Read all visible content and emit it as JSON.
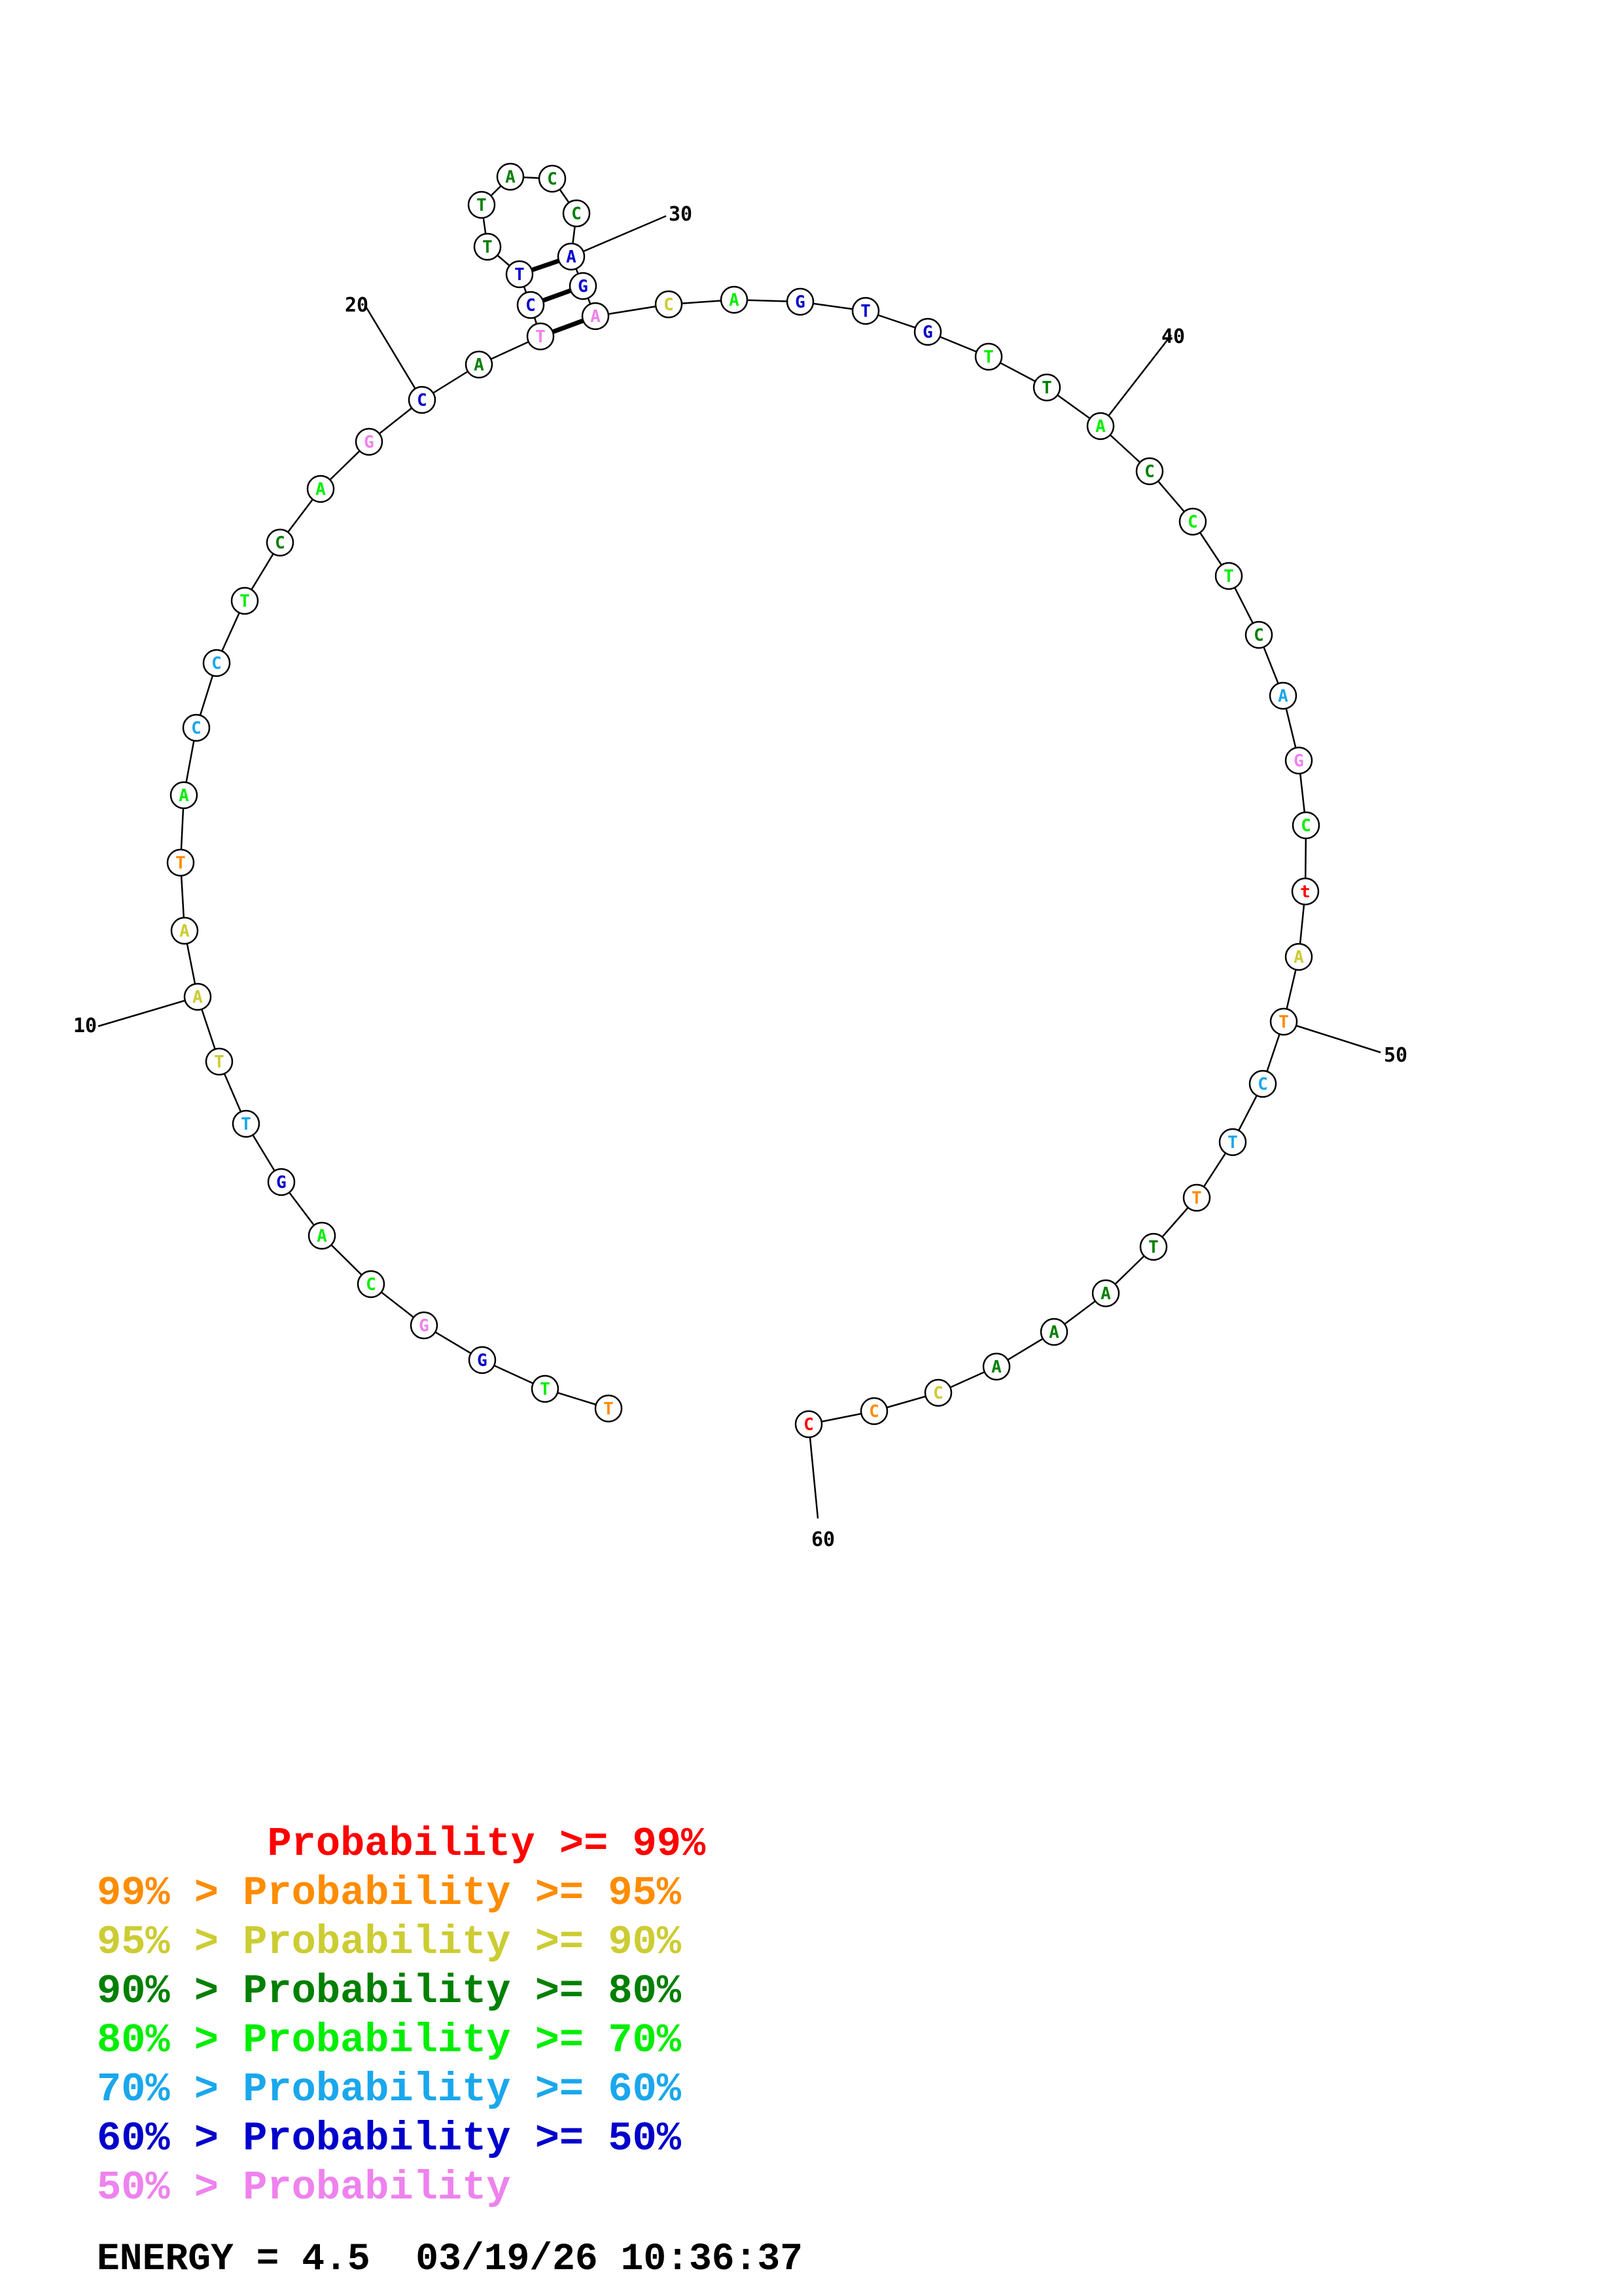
{
  "colors": {
    "p99": "#ff0000",
    "p95": "#ff8c00",
    "p90": "#cccc33",
    "p80": "#008000",
    "p70": "#00ee00",
    "p60": "#1aa7ec",
    "p50": "#0000cc",
    "plt50": "#ee82ee"
  },
  "structure": {
    "nucleotides": [
      {
        "i": 1,
        "base": "T",
        "prob": "p95"
      },
      {
        "i": 2,
        "base": "T",
        "prob": "p70"
      },
      {
        "i": 3,
        "base": "G",
        "prob": "p50"
      },
      {
        "i": 4,
        "base": "G",
        "prob": "plt50"
      },
      {
        "i": 5,
        "base": "C",
        "prob": "p70"
      },
      {
        "i": 6,
        "base": "A",
        "prob": "p70"
      },
      {
        "i": 7,
        "base": "G",
        "prob": "p50"
      },
      {
        "i": 8,
        "base": "T",
        "prob": "p60"
      },
      {
        "i": 9,
        "base": "T",
        "prob": "p90"
      },
      {
        "i": 10,
        "base": "A",
        "prob": "p90"
      },
      {
        "i": 11,
        "base": "A",
        "prob": "p90"
      },
      {
        "i": 12,
        "base": "T",
        "prob": "p95"
      },
      {
        "i": 13,
        "base": "A",
        "prob": "p70"
      },
      {
        "i": 14,
        "base": "C",
        "prob": "p60"
      },
      {
        "i": 15,
        "base": "C",
        "prob": "p60"
      },
      {
        "i": 16,
        "base": "T",
        "prob": "p70"
      },
      {
        "i": 17,
        "base": "C",
        "prob": "p80"
      },
      {
        "i": 18,
        "base": "A",
        "prob": "p70"
      },
      {
        "i": 19,
        "base": "G",
        "prob": "plt50"
      },
      {
        "i": 20,
        "base": "C",
        "prob": "p50"
      },
      {
        "i": 21,
        "base": "A",
        "prob": "p80"
      },
      {
        "i": 22,
        "base": "T",
        "prob": "plt50"
      },
      {
        "i": 23,
        "base": "C",
        "prob": "p50"
      },
      {
        "i": 24,
        "base": "T",
        "prob": "p50"
      },
      {
        "i": 25,
        "base": "T",
        "prob": "p80"
      },
      {
        "i": 26,
        "base": "T",
        "prob": "p80"
      },
      {
        "i": 27,
        "base": "A",
        "prob": "p80"
      },
      {
        "i": 28,
        "base": "C",
        "prob": "p80"
      },
      {
        "i": 29,
        "base": "C",
        "prob": "p80"
      },
      {
        "i": 30,
        "base": "A",
        "prob": "p50"
      },
      {
        "i": 31,
        "base": "G",
        "prob": "p50"
      },
      {
        "i": 32,
        "base": "A",
        "prob": "plt50"
      },
      {
        "i": 33,
        "base": "C",
        "prob": "p90"
      },
      {
        "i": 34,
        "base": "A",
        "prob": "p70"
      },
      {
        "i": 35,
        "base": "G",
        "prob": "p50"
      },
      {
        "i": 36,
        "base": "T",
        "prob": "p50"
      },
      {
        "i": 37,
        "base": "G",
        "prob": "p50"
      },
      {
        "i": 38,
        "base": "T",
        "prob": "p70"
      },
      {
        "i": 39,
        "base": "T",
        "prob": "p80"
      },
      {
        "i": 40,
        "base": "A",
        "prob": "p70"
      },
      {
        "i": 41,
        "base": "C",
        "prob": "p80"
      },
      {
        "i": 42,
        "base": "C",
        "prob": "p70"
      },
      {
        "i": 43,
        "base": "T",
        "prob": "p70"
      },
      {
        "i": 44,
        "base": "C",
        "prob": "p80"
      },
      {
        "i": 45,
        "base": "A",
        "prob": "p60"
      },
      {
        "i": 46,
        "base": "G",
        "prob": "plt50"
      },
      {
        "i": 47,
        "base": "C",
        "prob": "p70"
      },
      {
        "i": 48,
        "base": "t",
        "prob": "p99"
      },
      {
        "i": 49,
        "base": "A",
        "prob": "p90"
      },
      {
        "i": 50,
        "base": "T",
        "prob": "p95"
      },
      {
        "i": 51,
        "base": "C",
        "prob": "p60"
      },
      {
        "i": 52,
        "base": "T",
        "prob": "p60"
      },
      {
        "i": 53,
        "base": "T",
        "prob": "p95"
      },
      {
        "i": 54,
        "base": "T",
        "prob": "p80"
      },
      {
        "i": 55,
        "base": "A",
        "prob": "p80"
      },
      {
        "i": 56,
        "base": "A",
        "prob": "p80"
      },
      {
        "i": 57,
        "base": "A",
        "prob": "p80"
      },
      {
        "i": 58,
        "base": "C",
        "prob": "p90"
      },
      {
        "i": 59,
        "base": "C",
        "prob": "p95"
      },
      {
        "i": 60,
        "base": "C",
        "prob": "p99"
      }
    ],
    "pairs": [
      [
        22,
        32
      ],
      [
        23,
        31
      ],
      [
        24,
        30
      ]
    ],
    "tick_labels": [
      {
        "i": 10,
        "label": "10"
      },
      {
        "i": 20,
        "label": "20"
      },
      {
        "i": 30,
        "label": "30"
      },
      {
        "i": 40,
        "label": "40"
      },
      {
        "i": 50,
        "label": "50"
      },
      {
        "i": 60,
        "label": "60"
      }
    ]
  },
  "legend": [
    {
      "prefix": "       ",
      "text": "Probability >= 99%",
      "color": "p99"
    },
    {
      "prefix": "99% > ",
      "text": "Probability >= 95%",
      "color": "p95"
    },
    {
      "prefix": "95% > ",
      "text": "Probability >= 90%",
      "color": "p90"
    },
    {
      "prefix": "90% > ",
      "text": "Probability >= 80%",
      "color": "p80"
    },
    {
      "prefix": "80% > ",
      "text": "Probability >= 70%",
      "color": "p70"
    },
    {
      "prefix": "70% > ",
      "text": "Probability >= 60%",
      "color": "p60"
    },
    {
      "prefix": "60% > ",
      "text": "Probability >= 50%",
      "color": "p50"
    },
    {
      "prefix": "50% > ",
      "text": "Probability",
      "color": "plt50"
    }
  ],
  "footer": {
    "energy": "ENERGY = 4.5  03/19/26 10:36:37"
  }
}
